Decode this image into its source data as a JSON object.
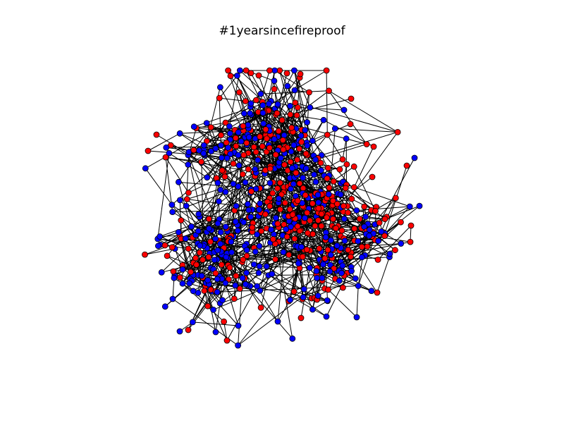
{
  "figure": {
    "title": "#1yearsincefireproof"
  },
  "network": {
    "node_colors": [
      "#ff0000",
      "#0000ff"
    ],
    "node_outline": "#000000",
    "edge_color": "#000000"
  }
}
